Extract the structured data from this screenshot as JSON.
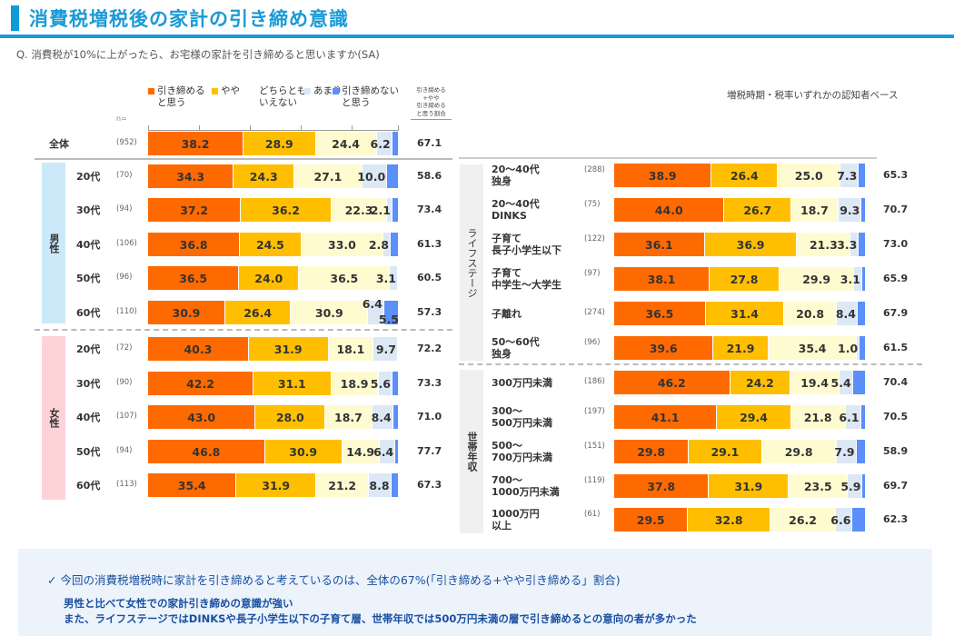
{
  "header": {
    "title": "消費税増税後の家計の引き締め意識",
    "question": "Q. 消費税が10%に上がったら、お宅様の家計を引き締めると思いますか(SA)",
    "base_note": "増税時期・税率いずれかの認知者ベース",
    "n_label": "n=",
    "ratio_header": [
      "引き締める",
      "+やや",
      "引き締める",
      "と思う割合"
    ]
  },
  "colors": {
    "seg1": "#ff6a00",
    "seg2": "#ffbf00",
    "seg3": "#fffbd0",
    "seg4": "#dce8f5",
    "seg5": "#5b8ff9",
    "title": "#1a9ad6",
    "male_band": "#cce9fa",
    "female_band": "#fdd3d8"
  },
  "chart_data": {
    "type": "bar",
    "orientation": "horizontal-stacked-100",
    "title": "消費税増税後の家計の引き締め意識",
    "xlim": [
      0,
      100
    ],
    "series_names": [
      "引き締めると思う",
      "やや",
      "どちらともいえない",
      "あまり",
      "引き締めないと思う"
    ],
    "extra_column": "引き締める+やや引き締めると思う割合",
    "legend_position": "top",
    "groups": [
      {
        "group": "",
        "rows": [
          {
            "label": "全体",
            "n": "(952)",
            "values": [
              38.2,
              28.9,
              24.4,
              6.2,
              2.3
            ],
            "labels": [
              "38.2",
              "28.9",
              "24.4",
              "6.2",
              ""
            ],
            "ratio": "67.1"
          }
        ]
      },
      {
        "group": "男性",
        "rows": [
          {
            "label": "20代",
            "n": "(70)",
            "values": [
              34.3,
              24.3,
              27.1,
              10.0,
              4.3
            ],
            "labels": [
              "34.3",
              "24.3",
              "27.1",
              "10.0",
              ""
            ],
            "ratio": "58.6"
          },
          {
            "label": "30代",
            "n": "(94)",
            "values": [
              37.2,
              36.2,
              22.3,
              2.1,
              2.2
            ],
            "labels": [
              "37.2",
              "36.2",
              "22.3",
              "2.1",
              ""
            ],
            "ratio": "73.4"
          },
          {
            "label": "40代",
            "n": "(106)",
            "values": [
              36.8,
              24.5,
              33.0,
              2.8,
              2.9
            ],
            "labels": [
              "36.8",
              "24.5",
              "33.0",
              "2.8",
              ""
            ],
            "ratio": "61.3"
          },
          {
            "label": "50代",
            "n": "(96)",
            "values": [
              36.5,
              24.0,
              36.5,
              3.1,
              0.0
            ],
            "labels": [
              "36.5",
              "24.0",
              "36.5",
              "3.1",
              ""
            ],
            "ratio": "60.5"
          },
          {
            "label": "60代",
            "n": "(110)",
            "values": [
              30.9,
              26.4,
              30.9,
              6.4,
              5.5
            ],
            "labels": [
              "30.9",
              "26.4",
              "30.9",
              "6.4",
              "5.5"
            ],
            "ratio": "57.3"
          }
        ]
      },
      {
        "group": "女性",
        "rows": [
          {
            "label": "20代",
            "n": "(72)",
            "values": [
              40.3,
              31.9,
              18.1,
              9.7,
              0.0
            ],
            "labels": [
              "40.3",
              "31.9",
              "18.1",
              "9.7",
              ""
            ],
            "ratio": "72.2"
          },
          {
            "label": "30代",
            "n": "(90)",
            "values": [
              42.2,
              31.1,
              18.9,
              5.6,
              2.2
            ],
            "labels": [
              "42.2",
              "31.1",
              "18.9",
              "5.6",
              ""
            ],
            "ratio": "73.3"
          },
          {
            "label": "40代",
            "n": "(107)",
            "values": [
              43.0,
              28.0,
              18.7,
              8.4,
              1.9
            ],
            "labels": [
              "43.0",
              "28.0",
              "18.7",
              "8.4",
              ""
            ],
            "ratio": "71.0"
          },
          {
            "label": "50代",
            "n": "(94)",
            "values": [
              46.8,
              30.9,
              14.9,
              6.4,
              1.0
            ],
            "labels": [
              "46.8",
              "30.9",
              "14.9",
              "6.4",
              ""
            ],
            "ratio": "77.7"
          },
          {
            "label": "60代",
            "n": "(113)",
            "values": [
              35.4,
              31.9,
              21.2,
              8.8,
              2.7
            ],
            "labels": [
              "35.4",
              "31.9",
              "21.2",
              "8.8",
              ""
            ],
            "ratio": "67.3"
          }
        ]
      },
      {
        "group": "ライフステージ",
        "rows": [
          {
            "label": "20～40代\n独身",
            "n": "(288)",
            "values": [
              38.9,
              26.4,
              25.0,
              7.3,
              2.4
            ],
            "labels": [
              "38.9",
              "26.4",
              "25.0",
              "7.3",
              ""
            ],
            "ratio": "65.3"
          },
          {
            "label": "20～40代\nDINKS",
            "n": "(75)",
            "values": [
              44.0,
              26.7,
              18.7,
              9.3,
              1.3
            ],
            "labels": [
              "44.0",
              "26.7",
              "18.7",
              "9.3",
              ""
            ],
            "ratio": "70.7"
          },
          {
            "label": "子育て\n長子小学生以下",
            "n": "(122)",
            "values": [
              36.1,
              36.9,
              21.3,
              3.3,
              2.4
            ],
            "labels": [
              "36.1",
              "36.9",
              "21.3",
              "3.3",
              ""
            ],
            "ratio": "73.0"
          },
          {
            "label": "子育て\n中学生～大学生",
            "n": "(97)",
            "values": [
              38.1,
              27.8,
              29.9,
              3.1,
              1.1
            ],
            "labels": [
              "38.1",
              "27.8",
              "29.9",
              "3.1",
              ""
            ],
            "ratio": "65.9"
          },
          {
            "label": "子離れ",
            "n": "(274)",
            "values": [
              36.5,
              31.4,
              20.8,
              8.4,
              2.9
            ],
            "labels": [
              "36.5",
              "31.4",
              "20.8",
              "8.4",
              ""
            ],
            "ratio": "67.9"
          },
          {
            "label": "50～60代\n独身",
            "n": "(96)",
            "values": [
              39.6,
              21.9,
              35.4,
              1.0,
              2.1
            ],
            "labels": [
              "39.6",
              "21.9",
              "35.4",
              "1.0",
              ""
            ],
            "ratio": "61.5"
          }
        ]
      },
      {
        "group": "世帯年収",
        "rows": [
          {
            "label": "300万円未満",
            "n": "(186)",
            "values": [
              46.2,
              24.2,
              19.4,
              5.4,
              4.8
            ],
            "labels": [
              "46.2",
              "24.2",
              "19.4",
              "5.4",
              ""
            ],
            "ratio": "70.4"
          },
          {
            "label": "300～\n500万円未満",
            "n": "(197)",
            "values": [
              41.1,
              29.4,
              21.8,
              6.1,
              1.6
            ],
            "labels": [
              "41.1",
              "29.4",
              "21.8",
              "6.1",
              ""
            ],
            "ratio": "70.5"
          },
          {
            "label": "500～\n700万円未満",
            "n": "(151)",
            "values": [
              29.8,
              29.1,
              29.8,
              7.9,
              3.4
            ],
            "labels": [
              "29.8",
              "29.1",
              "29.8",
              "7.9",
              ""
            ],
            "ratio": "58.9"
          },
          {
            "label": "700～\n1000万円未満",
            "n": "(119)",
            "values": [
              37.8,
              31.9,
              23.5,
              5.9,
              0.9
            ],
            "labels": [
              "37.8",
              "31.9",
              "23.5",
              "5.9",
              ""
            ],
            "ratio": "69.7"
          },
          {
            "label": "1000万円\n以上",
            "n": "(61)",
            "values": [
              29.5,
              32.8,
              26.2,
              6.6,
              4.9
            ],
            "labels": [
              "29.5",
              "32.8",
              "26.2",
              "6.6",
              ""
            ],
            "ratio": "62.3"
          }
        ]
      }
    ]
  },
  "legend": [
    {
      "label": "引き締める\nと思う"
    },
    {
      "label": "やや"
    },
    {
      "label": "どちらとも\nいえない"
    },
    {
      "label": "あまり"
    },
    {
      "label": "引き締めない\nと思う"
    }
  ],
  "summary": {
    "check_icon": "✓",
    "headline": "今回の消費税増税時に家計を引き締めると考えているのは、全体の67%(「引き締める+やや引き締める」割合)",
    "lines": [
      "男性と比べて女性での家計引き締めの意識が強い",
      "また、ライフステージではDINKSや長子小学生以下の子育て層、世帯年収では500万円未満の層で引き締めるとの意向の者が多かった"
    ]
  }
}
